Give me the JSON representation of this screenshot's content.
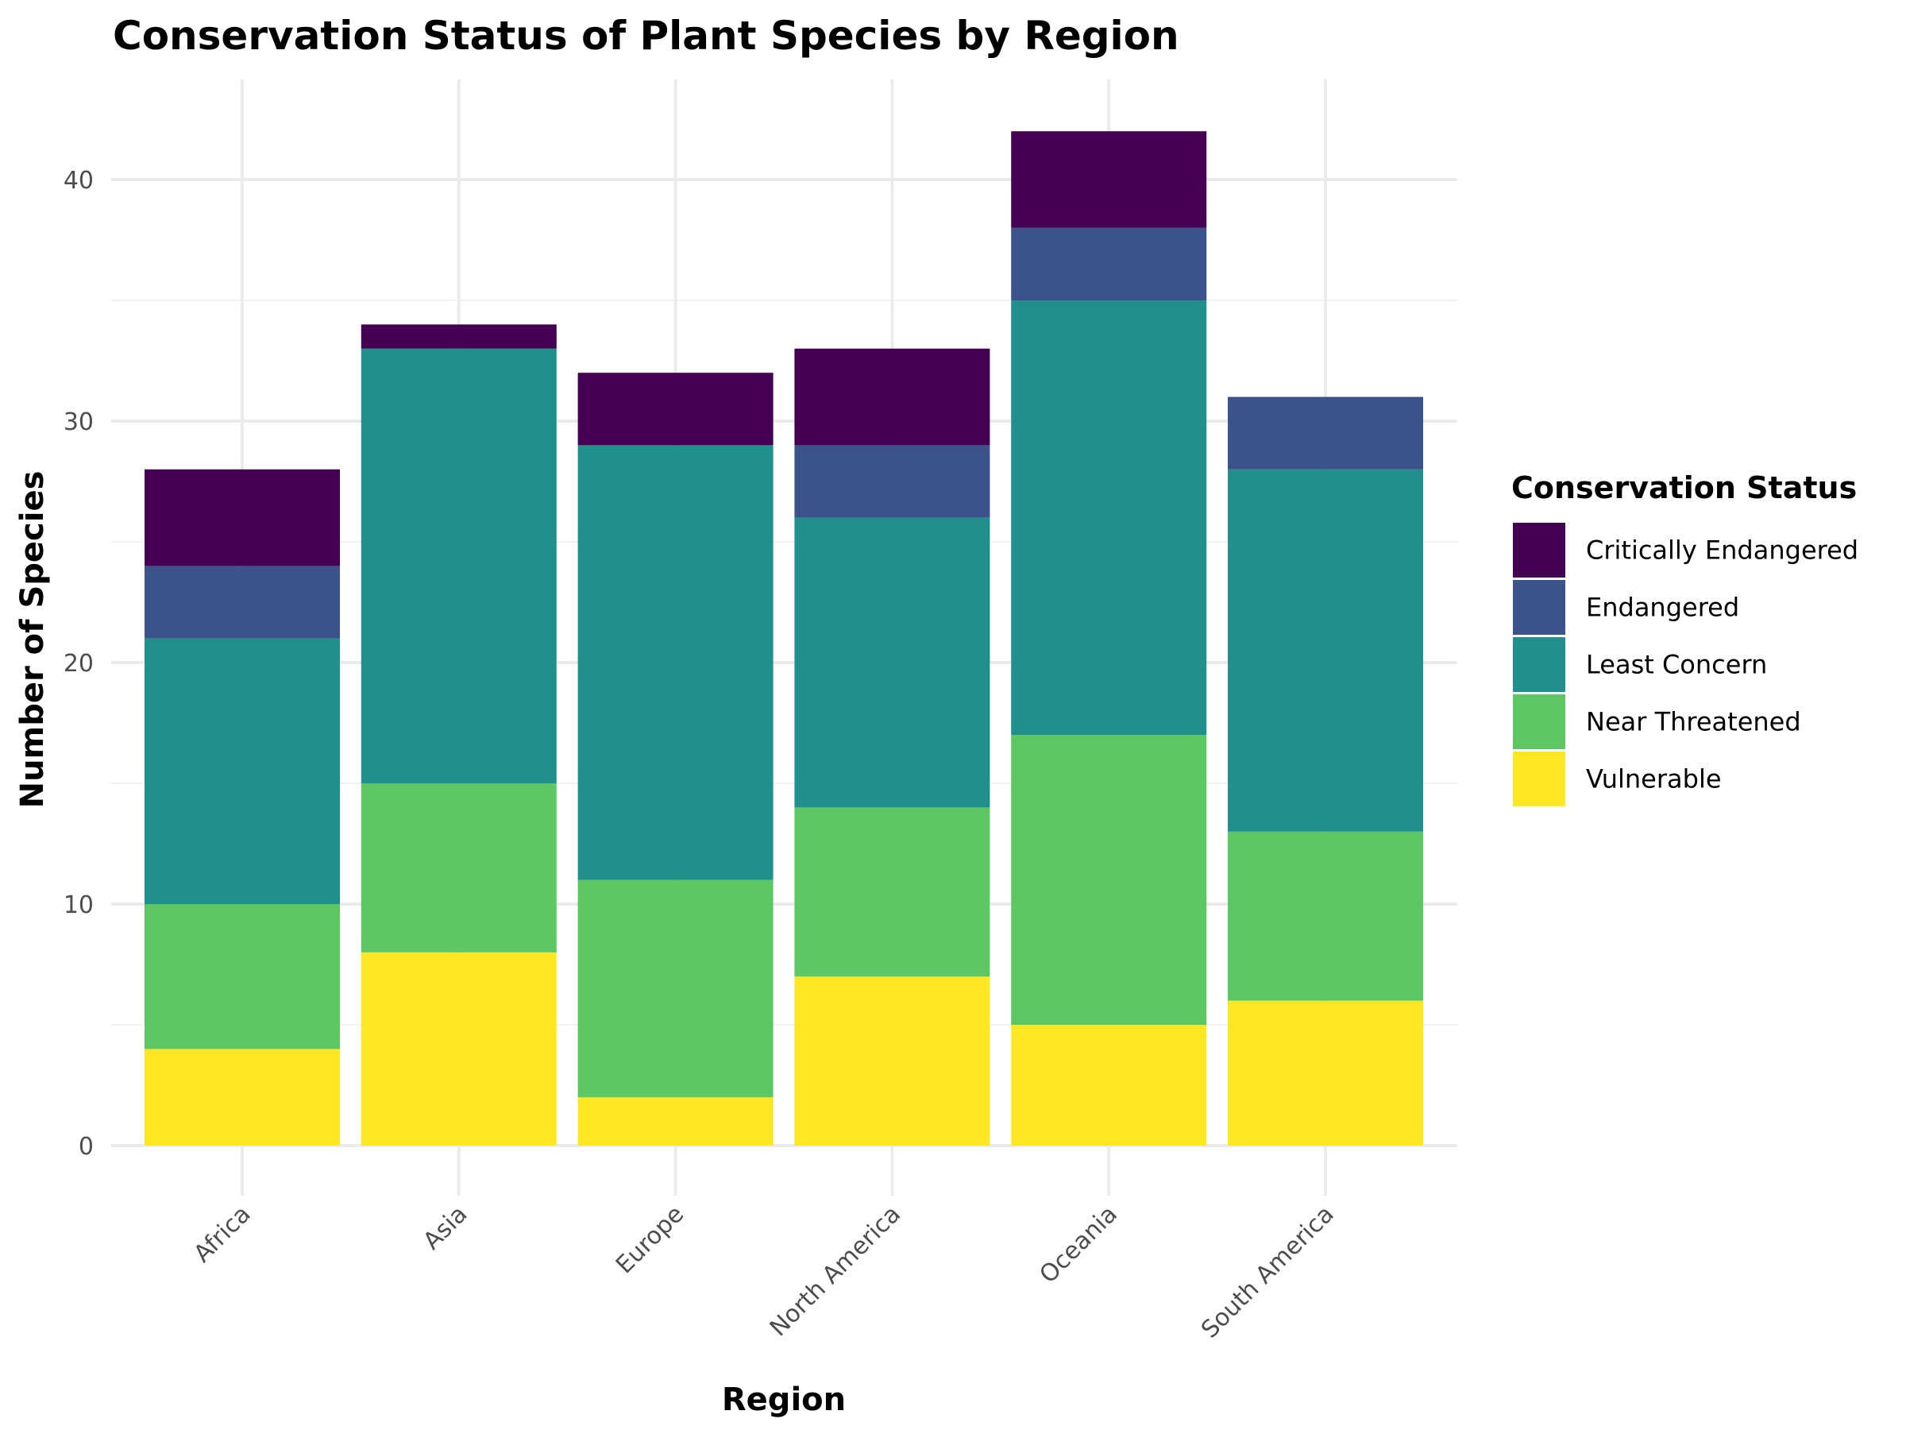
{
  "chart_data": {
    "type": "bar",
    "stacked": true,
    "title": "Conservation Status of Plant Species by Region",
    "xlabel": "Region",
    "ylabel": "Number of Species",
    "categories": [
      "Africa",
      "Asia",
      "Europe",
      "North America",
      "Oceania",
      "South America"
    ],
    "ylim": [
      0,
      44
    ],
    "yticks": [
      0,
      10,
      20,
      30,
      40
    ],
    "grid": true,
    "legend": {
      "title": "Conservation Status",
      "position": "right"
    },
    "stack_order_bottom_to_top": [
      "Vulnerable",
      "Near Threatened",
      "Least Concern",
      "Endangered",
      "Critically Endangered"
    ],
    "series": [
      {
        "name": "Critically Endangered",
        "color": "#440154",
        "values": [
          4,
          1,
          3,
          4,
          4,
          0
        ]
      },
      {
        "name": "Endangered",
        "color": "#3B528B",
        "values": [
          3,
          0,
          0,
          3,
          3,
          3
        ]
      },
      {
        "name": "Least Concern",
        "color": "#21908C",
        "values": [
          11,
          18,
          18,
          12,
          18,
          15
        ]
      },
      {
        "name": "Near Threatened",
        "color": "#5DC863",
        "values": [
          6,
          7,
          9,
          7,
          12,
          7
        ]
      },
      {
        "name": "Vulnerable",
        "color": "#FDE725",
        "values": [
          4,
          8,
          2,
          7,
          5,
          6
        ]
      }
    ]
  }
}
